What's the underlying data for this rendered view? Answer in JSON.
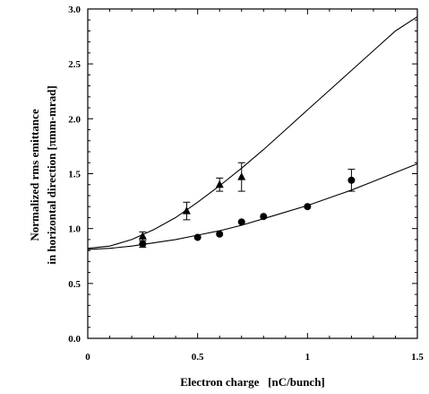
{
  "chart_data": {
    "type": "scatter",
    "title": "",
    "xlabel": "Electron charge   [nC/bunch]",
    "ylabel_lines": [
      "Normalized rms emittance",
      "in horizontal direction  [πmm-mrad]"
    ],
    "xlim": [
      0,
      1.5
    ],
    "ylim": [
      0,
      3.0
    ],
    "x_ticks": [
      0,
      0.5,
      1,
      1.5
    ],
    "x_tick_labels": [
      "0",
      "0.5",
      "1",
      "1.5"
    ],
    "y_ticks": [
      0,
      0.5,
      1,
      1.5,
      2,
      2.5,
      3
    ],
    "y_tick_labels": [
      "0.0",
      "0.5",
      "1.0",
      "1.5",
      "2.0",
      "2.5",
      "3.0"
    ],
    "grid": false,
    "series": [
      {
        "marker": "triangle",
        "x": [
          0.25,
          0.45,
          0.6,
          0.7
        ],
        "y": [
          0.93,
          1.16,
          1.4,
          1.47
        ],
        "err": [
          0.04,
          0.08,
          0.06,
          0.13
        ]
      },
      {
        "marker": "circle",
        "x": [
          0.25,
          0.5,
          0.6,
          0.7,
          0.8,
          1.0,
          1.2
        ],
        "y": [
          0.86,
          0.92,
          0.95,
          1.06,
          1.11,
          1.2,
          1.44
        ],
        "err": [
          0.03,
          0,
          0,
          0,
          0,
          0,
          0.1
        ]
      }
    ],
    "curves": [
      {
        "x": [
          0,
          0.1,
          0.2,
          0.3,
          0.4,
          0.5,
          0.6,
          0.7,
          0.8,
          0.9,
          1.0,
          1.1,
          1.2,
          1.3,
          1.4,
          1.5
        ],
        "y": [
          0.82,
          0.84,
          0.9,
          0.99,
          1.1,
          1.24,
          1.39,
          1.55,
          1.72,
          1.9,
          2.08,
          2.26,
          2.44,
          2.62,
          2.8,
          2.93
        ]
      },
      {
        "x": [
          0,
          0.1,
          0.2,
          0.3,
          0.4,
          0.5,
          0.6,
          0.7,
          0.8,
          0.9,
          1.0,
          1.1,
          1.2,
          1.3,
          1.4,
          1.5
        ],
        "y": [
          0.81,
          0.82,
          0.84,
          0.87,
          0.9,
          0.94,
          0.98,
          1.03,
          1.09,
          1.15,
          1.21,
          1.28,
          1.35,
          1.43,
          1.51,
          1.59
        ]
      }
    ]
  }
}
